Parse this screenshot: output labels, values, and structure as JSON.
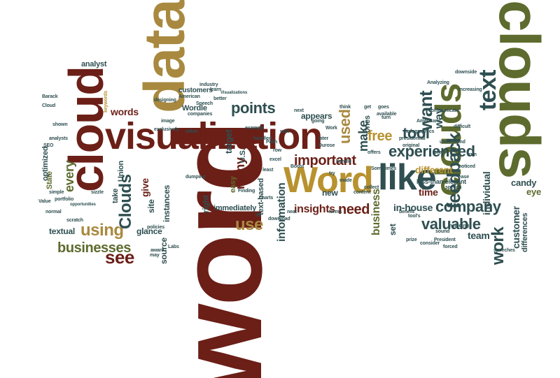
{
  "palette": {
    "brown": "#6b1f17",
    "gold": "#a8893f",
    "olive": "#5d6b2e",
    "slate": "#2f4f51",
    "tan": "#b8922f"
  },
  "words": [
    {
      "key": "word_big",
      "text": "word",
      "color": "brown",
      "size": 170,
      "rot": -90
    },
    {
      "key": "clouds_big",
      "text": "clouds",
      "color": "olive",
      "size": 82,
      "rot": 90
    },
    {
      "key": "data",
      "text": "data",
      "color": "gold",
      "size": 82,
      "rot": -90
    },
    {
      "key": "cloud",
      "text": "cloud",
      "color": "brown",
      "size": 70,
      "rot": -90
    },
    {
      "key": "visualization",
      "text": "visualization",
      "color": "brown",
      "size": 54,
      "rot": 0
    },
    {
      "key": "clouds_mid",
      "text": "clouds",
      "color": "olive",
      "size": 52,
      "rot": -90
    },
    {
      "key": "Word_cap",
      "text": "Word",
      "color": "tan",
      "size": 52,
      "rot": 0
    },
    {
      "key": "like",
      "text": "like",
      "color": "slate",
      "size": 52,
      "rot": 0
    },
    {
      "key": "text",
      "text": "text",
      "color": "slate",
      "size": 34,
      "rot": -90
    },
    {
      "key": "want",
      "text": "want",
      "color": "slate",
      "size": 26,
      "rot": -90
    },
    {
      "key": "feedback",
      "text": "feedback",
      "color": "slate",
      "size": 26,
      "rot": -90
    },
    {
      "key": "experienced",
      "text": "experienced",
      "color": "slate",
      "size": 22,
      "rot": 0
    },
    {
      "key": "company",
      "text": "company",
      "color": "slate",
      "size": 22,
      "rot": 0
    },
    {
      "key": "valuable",
      "text": "valuable",
      "color": "slate",
      "size": 22,
      "rot": 0
    },
    {
      "key": "work",
      "text": "work",
      "color": "slate",
      "size": 24,
      "rot": -90
    },
    {
      "key": "points",
      "text": "points",
      "color": "slate",
      "size": 22,
      "rot": 0
    },
    {
      "key": "important",
      "text": "important",
      "color": "brown",
      "size": 20,
      "rot": 0
    },
    {
      "key": "free",
      "text": "free",
      "color": "tan",
      "size": 20,
      "rot": 0
    },
    {
      "key": "use",
      "text": "use",
      "color": "gold",
      "size": 24,
      "rot": 0
    },
    {
      "key": "used",
      "text": "used",
      "color": "gold",
      "size": 22,
      "rot": -90
    },
    {
      "key": "see",
      "text": "see",
      "color": "brown",
      "size": 26,
      "rot": 0
    },
    {
      "key": "using",
      "text": "using",
      "color": "gold",
      "size": 24,
      "rot": 0
    },
    {
      "key": "businesses",
      "text": "businesses",
      "color": "olive",
      "size": 20,
      "rot": 0
    },
    {
      "key": "tool",
      "text": "tool",
      "color": "slate",
      "size": 22,
      "rot": 0
    },
    {
      "key": "need",
      "text": "need",
      "color": "brown",
      "size": 20,
      "rot": 0
    },
    {
      "key": "make",
      "text": "make",
      "color": "slate",
      "size": 18,
      "rot": -90
    },
    {
      "key": "Clouds_cap",
      "text": "Clouds",
      "color": "slate",
      "size": 24,
      "rot": -90
    },
    {
      "key": "every",
      "text": "every",
      "color": "olive",
      "size": 18,
      "rot": -90
    },
    {
      "key": "words",
      "text": "words",
      "color": "brown",
      "size": 14,
      "rot": 0
    },
    {
      "key": "many",
      "text": "many",
      "color": "brown",
      "size": 18,
      "rot": -90
    },
    {
      "key": "information",
      "text": "information",
      "color": "slate",
      "size": 16,
      "rot": -90
    },
    {
      "key": "insights",
      "text": "insights",
      "color": "brown",
      "size": 16,
      "rot": 0
    },
    {
      "key": "business",
      "text": "business",
      "color": "olive",
      "size": 16,
      "rot": -90
    },
    {
      "key": "in_house",
      "text": "in-house",
      "color": "slate",
      "size": 14,
      "rot": 0
    },
    {
      "key": "team",
      "text": "team",
      "color": "slate",
      "size": 14,
      "rot": 0
    },
    {
      "key": "customer_v",
      "text": "customer",
      "color": "slate",
      "size": 14,
      "rot": -90
    },
    {
      "key": "individual",
      "text": "individual",
      "color": "slate",
      "size": 14,
      "rot": -90
    },
    {
      "key": "time",
      "text": "time",
      "color": "brown",
      "size": 14,
      "rot": 0
    },
    {
      "key": "different",
      "text": "different",
      "color": "tan",
      "size": 14,
      "rot": 0
    },
    {
      "key": "candy",
      "text": "candy",
      "color": "slate",
      "size": 13,
      "rot": 0
    },
    {
      "key": "eye",
      "text": "eye",
      "color": "olive",
      "size": 13,
      "rot": 0
    },
    {
      "key": "way",
      "text": "way",
      "color": "slate",
      "size": 16,
      "rot": -90
    },
    {
      "key": "target",
      "text": "target",
      "color": "slate",
      "size": 13,
      "rot": -90
    },
    {
      "key": "textual",
      "text": "textual",
      "color": "slate",
      "size": 12,
      "rot": 0
    },
    {
      "key": "glance",
      "text": "glance",
      "color": "slate",
      "size": 12,
      "rot": 0
    },
    {
      "key": "instances",
      "text": "instances",
      "color": "slate",
      "size": 12,
      "rot": -90
    },
    {
      "key": "source",
      "text": "source",
      "color": "slate",
      "size": 12,
      "rot": -90
    },
    {
      "key": "site",
      "text": "site",
      "color": "slate",
      "size": 12,
      "rot": -90
    },
    {
      "key": "give",
      "text": "give",
      "color": "brown",
      "size": 14,
      "rot": -90
    },
    {
      "key": "Union",
      "text": "Union",
      "color": "slate",
      "size": 11,
      "rot": -90
    },
    {
      "key": "State",
      "text": "State",
      "color": "olive",
      "size": 11,
      "rot": -90
    },
    {
      "key": "optimized",
      "text": "optimized",
      "color": "slate",
      "size": 11,
      "rot": -90
    },
    {
      "key": "take",
      "text": "take",
      "color": "slate",
      "size": 11,
      "rot": -90
    },
    {
      "key": "appears",
      "text": "appears",
      "color": "slate",
      "size": 12,
      "rot": 0
    },
    {
      "key": "new",
      "text": "new",
      "color": "slate",
      "size": 12,
      "rot": 0
    },
    {
      "key": "set",
      "text": "set",
      "color": "slate",
      "size": 12,
      "rot": -90
    },
    {
      "key": "right",
      "text": "right",
      "color": "slate",
      "size": 12,
      "rot": -90
    },
    {
      "key": "immediately",
      "text": "immediately",
      "color": "slate",
      "size": 11,
      "rot": 0
    },
    {
      "key": "text_based",
      "text": "text-based",
      "color": "slate",
      "size": 11,
      "rot": -90
    },
    {
      "key": "easy",
      "text": "easy",
      "color": "olive",
      "size": 11,
      "rot": -90
    },
    {
      "key": "US",
      "text": "U.S.",
      "color": "slate",
      "size": 11,
      "rot": -90
    },
    {
      "key": "ones",
      "text": "ones",
      "color": "slate",
      "size": 11,
      "rot": -90
    },
    {
      "key": "analyst",
      "text": "analyst",
      "color": "slate",
      "size": 11,
      "rot": 0
    },
    {
      "key": "Wordle",
      "text": "Wordle",
      "color": "slate",
      "size": 11,
      "rot": 0
    },
    {
      "key": "customers",
      "text": "customers",
      "color": "slate",
      "size": 10,
      "rot": 0
    },
    {
      "key": "differences",
      "text": "differences",
      "color": "slate",
      "size": 11,
      "rot": -90
    },
    {
      "key": "less_than_elegant",
      "text": "less-than-elegant",
      "color": "slate",
      "size": 9,
      "rot": 0
    },
    {
      "key": "keywords",
      "text": "keywords",
      "color": "tan",
      "size": 7,
      "rot": -90
    },
    {
      "key": "Barack",
      "text": "Barack",
      "color": "slate",
      "size": 7,
      "rot": 0
    },
    {
      "key": "Cloud",
      "text": "Cloud",
      "color": "slate",
      "size": 7,
      "rot": 0
    },
    {
      "key": "designing",
      "text": "designing",
      "color": "slate",
      "size": 7,
      "rot": 0
    },
    {
      "key": "image",
      "text": "image",
      "color": "slate",
      "size": 7,
      "rot": 0
    },
    {
      "key": "exclusively",
      "text": "exclusively",
      "color": "slate",
      "size": 7,
      "rot": 0
    },
    {
      "key": "either",
      "text": "either",
      "color": "slate",
      "size": 7,
      "rot": 0
    },
    {
      "key": "companies",
      "text": "companies",
      "color": "slate",
      "size": 7,
      "rot": 0
    },
    {
      "key": "American",
      "text": "American",
      "color": "slate",
      "size": 7,
      "rot": 0
    },
    {
      "key": "Speech",
      "text": "Speech",
      "color": "slate",
      "size": 7,
      "rot": 0
    },
    {
      "key": "Visualizations",
      "text": "Visualizations",
      "color": "slate",
      "size": 6,
      "rot": 0
    },
    {
      "key": "Finding",
      "text": "Finding",
      "color": "slate",
      "size": 7,
      "rot": 0
    },
    {
      "key": "dumping",
      "text": "dumping",
      "color": "slate",
      "size": 7,
      "rot": 0
    },
    {
      "key": "policies",
      "text": "policies",
      "color": "slate",
      "size": 7,
      "rot": 0
    },
    {
      "key": "Labs",
      "text": "Labs",
      "color": "slate",
      "size": 7,
      "rot": 0
    },
    {
      "key": "aware",
      "text": "aware",
      "color": "slate",
      "size": 7,
      "rot": 0
    },
    {
      "key": "sizzle",
      "text": "sizzle",
      "color": "slate",
      "size": 7,
      "rot": 0
    },
    {
      "key": "scratch",
      "text": "scratch",
      "color": "slate",
      "size": 7,
      "rot": 0
    },
    {
      "key": "Value",
      "text": "Value",
      "color": "slate",
      "size": 7,
      "rot": 0
    },
    {
      "key": "normal",
      "text": "normal",
      "color": "slate",
      "size": 7,
      "rot": 0
    },
    {
      "key": "simple",
      "text": "simple",
      "color": "slate",
      "size": 7,
      "rot": 0
    },
    {
      "key": "portfolio",
      "text": "portfolio",
      "color": "slate",
      "size": 7,
      "rot": 0
    },
    {
      "key": "analysts",
      "text": "analysts",
      "color": "slate",
      "size": 7,
      "rot": 0
    },
    {
      "key": "SEO",
      "text": "SEO",
      "color": "slate",
      "size": 7,
      "rot": 0
    },
    {
      "key": "opportunities",
      "text": "opportunities",
      "color": "slate",
      "size": 6,
      "rot": 0
    },
    {
      "key": "shown",
      "text": "shown",
      "color": "slate",
      "size": 7,
      "rot": 0
    },
    {
      "key": "may",
      "text": "may",
      "color": "slate",
      "size": 7,
      "rot": 0
    },
    {
      "key": "neat",
      "text": "neat",
      "color": "slate",
      "size": 7,
      "rot": 0
    },
    {
      "key": "let",
      "text": "let",
      "color": "slate",
      "size": 7,
      "rot": 0
    },
    {
      "key": "download",
      "text": "download",
      "color": "slate",
      "size": 7,
      "rot": 0
    },
    {
      "key": "made",
      "text": "made",
      "color": "slate",
      "size": 7,
      "rot": 0
    },
    {
      "key": "content",
      "text": "content",
      "color": "slate",
      "size": 7,
      "rot": 0
    },
    {
      "key": "collect",
      "text": "collect",
      "color": "slate",
      "size": 7,
      "rot": 0
    },
    {
      "key": "Sometimes",
      "text": "Sometimes",
      "color": "slate",
      "size": 7,
      "rot": 0
    },
    {
      "key": "available",
      "text": "available",
      "color": "slate",
      "size": 7,
      "rot": 0
    },
    {
      "key": "Analyzing",
      "text": "Analyzing",
      "color": "slate",
      "size": 7,
      "rot": 0
    },
    {
      "key": "Americans",
      "text": "Americans",
      "color": "slate",
      "size": 7,
      "rot": 0
    },
    {
      "key": "communicate",
      "text": "communicate",
      "color": "slate",
      "size": 7,
      "rot": 0
    },
    {
      "key": "increasing",
      "text": "increasing",
      "color": "slate",
      "size": 7,
      "rot": 0
    },
    {
      "key": "difficult",
      "text": "difficult",
      "color": "slate",
      "size": 7,
      "rot": 0
    },
    {
      "key": "downside",
      "text": "downside",
      "color": "slate",
      "size": 7,
      "rot": 0
    },
    {
      "key": "understand",
      "text": "understand",
      "color": "slate",
      "size": 7,
      "rot": 0
    },
    {
      "key": "chart",
      "text": "chart",
      "color": "slate",
      "size": 7,
      "rot": 0
    },
    {
      "key": "original",
      "text": "original",
      "color": "slate",
      "size": 7,
      "rot": 0
    },
    {
      "key": "presidential",
      "text": "presidential",
      "color": "slate",
      "size": 7,
      "rot": 0
    },
    {
      "key": "speech",
      "text": "speech",
      "color": "slate",
      "size": 7,
      "rot": 0
    },
    {
      "key": "speeches",
      "text": "speeches",
      "color": "slate",
      "size": 7,
      "rot": 0
    },
    {
      "key": "including",
      "text": "including",
      "color": "slate",
      "size": 7,
      "rot": 0
    },
    {
      "key": "forced",
      "text": "forced",
      "color": "slate",
      "size": 7,
      "rot": 0
    },
    {
      "key": "sound",
      "text": "sound",
      "color": "slate",
      "size": 7,
      "rot": 0
    },
    {
      "key": "President",
      "text": "President",
      "color": "slate",
      "size": 7,
      "rot": 0
    },
    {
      "key": "consider",
      "text": "consider",
      "color": "slate",
      "size": 7,
      "rot": 0
    },
    {
      "key": "noticed",
      "text": "noticed",
      "color": "slate",
      "size": 7,
      "rot": 0
    },
    {
      "key": "run",
      "text": "run",
      "color": "slate",
      "size": 7,
      "rot": 0
    },
    {
      "key": "ease",
      "text": "ease",
      "color": "slate",
      "size": 7,
      "rot": 0
    },
    {
      "key": "prize",
      "text": "prize",
      "color": "slate",
      "size": 7,
      "rot": 0
    },
    {
      "key": "tool_s",
      "text": "tool's",
      "color": "slate",
      "size": 7,
      "rot": 0
    },
    {
      "key": "benefit",
      "text": "benefit",
      "color": "slate",
      "size": 7,
      "rot": 0
    },
    {
      "key": "think",
      "text": "think",
      "color": "slate",
      "size": 7,
      "rot": 0
    },
    {
      "key": "turn",
      "text": "turn",
      "color": "slate",
      "size": 7,
      "rot": 0
    },
    {
      "key": "goes",
      "text": "goes",
      "color": "slate",
      "size": 7,
      "rot": 0
    },
    {
      "key": "get",
      "text": "get",
      "color": "slate",
      "size": 7,
      "rot": 0
    },
    {
      "key": "Work",
      "text": "Work",
      "color": "slate",
      "size": 7,
      "rot": 0
    },
    {
      "key": "later",
      "text": "later",
      "color": "slate",
      "size": 7,
      "rot": 0
    },
    {
      "key": "going",
      "text": "going",
      "color": "slate",
      "size": 7,
      "rot": 0
    },
    {
      "key": "next",
      "text": "next",
      "color": "slate",
      "size": 7,
      "rot": 0
    },
    {
      "key": "Durose",
      "text": "Durose",
      "color": "slate",
      "size": 7,
      "rot": 0
    },
    {
      "key": "handle",
      "text": "handle",
      "color": "slate",
      "size": 7,
      "rot": 0
    },
    {
      "key": "try",
      "text": "try",
      "color": "slate",
      "size": 7,
      "rot": 0
    },
    {
      "key": "Boost",
      "text": "Boost",
      "color": "slate",
      "size": 7,
      "rot": 0
    },
    {
      "key": "least",
      "text": "least",
      "color": "slate",
      "size": 7,
      "rot": 0
    },
    {
      "key": "excel",
      "text": "excel",
      "color": "slate",
      "size": 7,
      "rot": 0
    },
    {
      "key": "row",
      "text": "row",
      "color": "slate",
      "size": 7,
      "rot": 0
    },
    {
      "key": "Palin",
      "text": "Palin",
      "color": "slate",
      "size": 7,
      "rot": 0
    },
    {
      "key": "handled",
      "text": "handled",
      "color": "slate",
      "size": 7,
      "rot": 0
    },
    {
      "key": "example",
      "text": "example",
      "color": "slate",
      "size": 7,
      "rot": 0
    },
    {
      "key": "wait",
      "text": "wait",
      "color": "slate",
      "size": 7,
      "rot": 0
    },
    {
      "key": "charts",
      "text": "charts",
      "color": "slate",
      "size": 7,
      "rot": 0
    },
    {
      "key": "terms",
      "text": "terms",
      "color": "slate",
      "size": 7,
      "rot": 0
    },
    {
      "key": "learn",
      "text": "learn",
      "color": "slate",
      "size": 7,
      "rot": 0
    },
    {
      "key": "better",
      "text": "better",
      "color": "slate",
      "size": 7,
      "rot": 0
    },
    {
      "key": "industry",
      "text": "industry",
      "color": "slate",
      "size": 7,
      "rot": 0
    },
    {
      "key": "infographics",
      "text": "infographics",
      "color": "slate",
      "size": 7,
      "rot": 0
    },
    {
      "key": "offers",
      "text": "offers",
      "color": "slate",
      "size": 7,
      "rot": 0
    }
  ]
}
